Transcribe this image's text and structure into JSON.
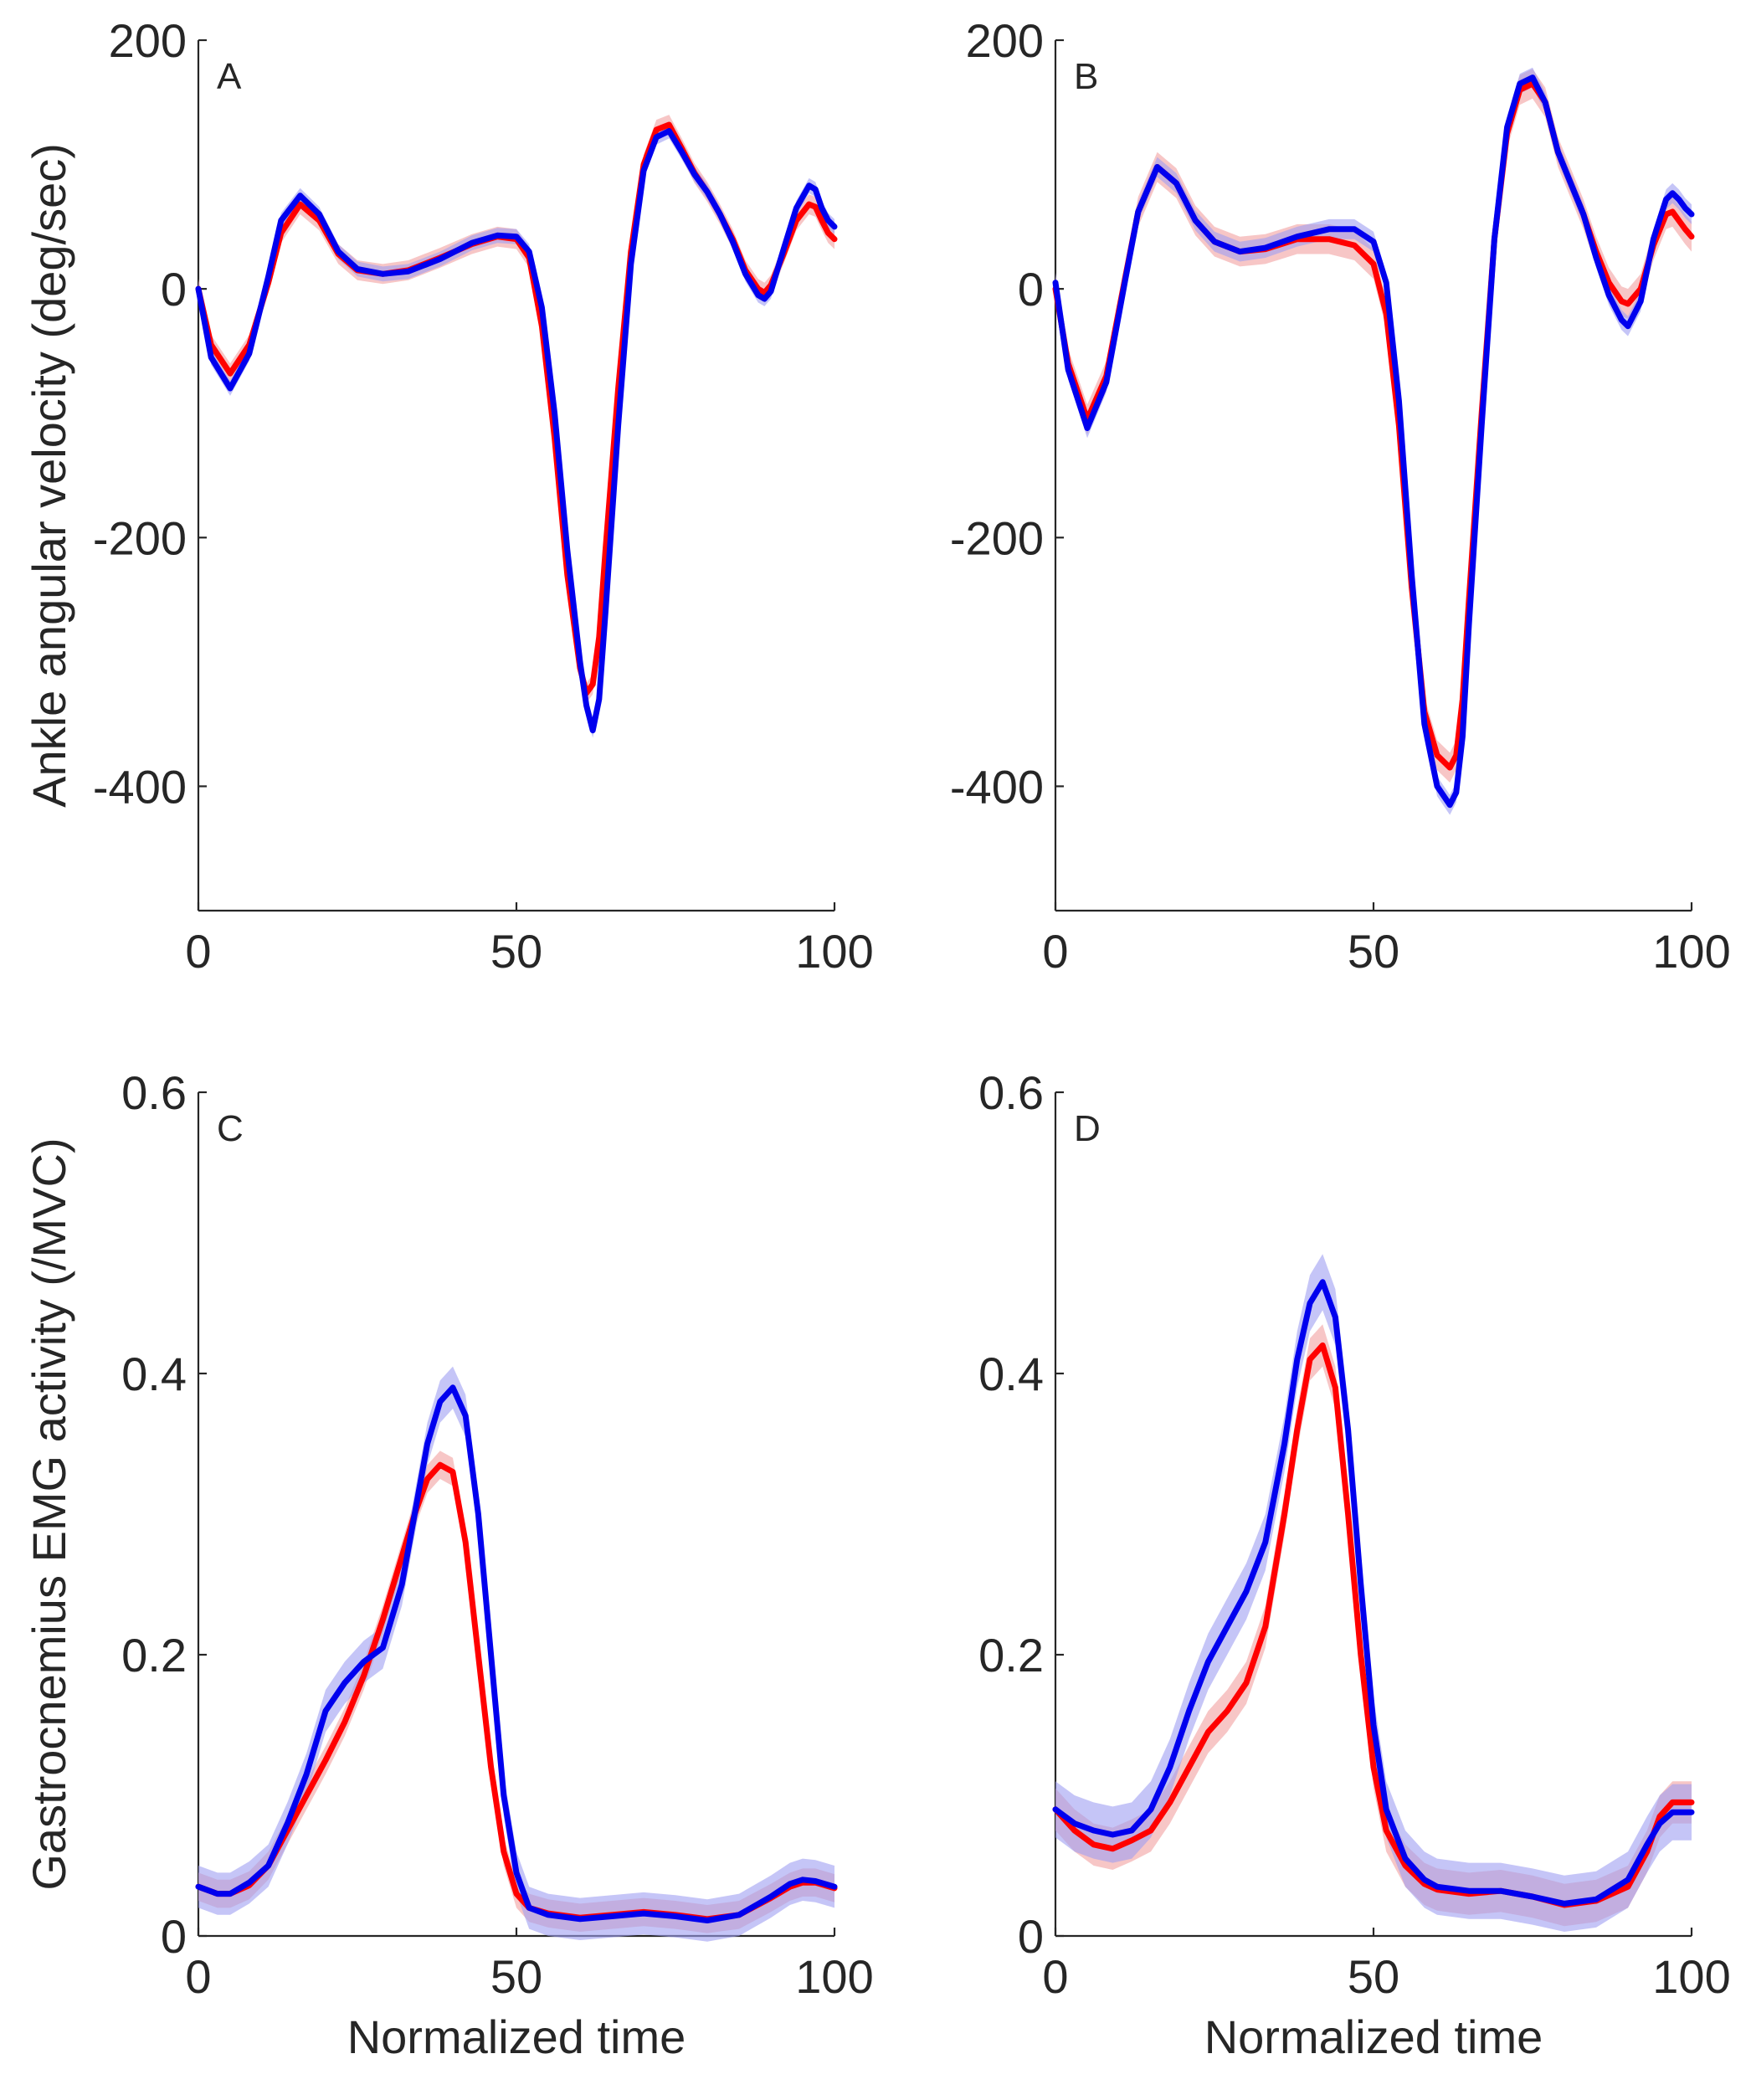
{
  "colors": {
    "red": "#ff0000",
    "blue": "#0000ee",
    "red_band": "#f2a0a0",
    "blue_band": "#9e9ef2",
    "axis": "#262626"
  },
  "chart_data": [
    {
      "type": "line",
      "panel": "A",
      "xlabel": "",
      "ylabel": "Ankle angular velocity (deg/sec)",
      "xlim": [
        0,
        100
      ],
      "ylim": [
        -500,
        200
      ],
      "xticks": [
        0,
        50,
        100
      ],
      "yticks": [
        -400,
        -200,
        0,
        200
      ],
      "x": [
        0,
        2,
        5,
        8,
        11,
        13,
        16,
        19,
        22,
        25,
        29,
        33,
        38,
        43,
        47,
        50,
        52,
        54,
        56,
        58,
        60,
        61,
        62,
        63,
        64,
        66,
        68,
        70,
        72,
        74,
        76,
        78,
        80,
        82,
        84,
        86,
        88,
        89,
        90,
        92,
        94,
        96,
        97,
        98,
        99,
        100
      ],
      "series": [
        {
          "name": "red",
          "color": "#ff0000",
          "band": 8,
          "values": [
            0,
            -45,
            -68,
            -45,
            5,
            45,
            68,
            55,
            28,
            15,
            12,
            15,
            25,
            36,
            42,
            40,
            25,
            -30,
            -120,
            -230,
            -305,
            -325,
            -318,
            -280,
            -210,
            -80,
            30,
            100,
            128,
            132,
            113,
            93,
            78,
            60,
            40,
            15,
            0,
            -3,
            3,
            28,
            55,
            68,
            66,
            55,
            45,
            40
          ]
        },
        {
          "name": "blue",
          "color": "#0000ee",
          "band": 6,
          "values": [
            0,
            -55,
            -80,
            -52,
            10,
            55,
            75,
            60,
            30,
            16,
            12,
            14,
            24,
            37,
            43,
            42,
            30,
            -15,
            -100,
            -210,
            -300,
            -335,
            -355,
            -330,
            -260,
            -110,
            20,
            95,
            122,
            127,
            110,
            92,
            78,
            60,
            38,
            12,
            -5,
            -8,
            -2,
            32,
            65,
            83,
            80,
            65,
            55,
            50
          ]
        }
      ]
    },
    {
      "type": "line",
      "panel": "B",
      "xlabel": "",
      "ylabel": "",
      "xlim": [
        0,
        100
      ],
      "ylim": [
        -500,
        200
      ],
      "xticks": [
        0,
        50,
        100
      ],
      "yticks": [
        -400,
        -200,
        0,
        200
      ],
      "x": [
        0,
        2,
        5,
        8,
        11,
        13,
        16,
        19,
        22,
        25,
        29,
        33,
        38,
        43,
        47,
        50,
        52,
        54,
        56,
        58,
        60,
        62,
        63,
        64,
        65,
        67,
        69,
        71,
        73,
        75,
        77,
        79,
        81,
        83,
        85,
        87,
        89,
        90,
        92,
        94,
        96,
        97,
        98,
        99,
        100
      ],
      "series": [
        {
          "name": "red",
          "color": "#ff0000",
          "band": 12,
          "values": [
            0,
            -60,
            -105,
            -70,
            10,
            62,
            98,
            85,
            55,
            38,
            30,
            32,
            40,
            40,
            35,
            20,
            -20,
            -110,
            -240,
            -340,
            -375,
            -385,
            -375,
            -330,
            -250,
            -100,
            40,
            125,
            160,
            165,
            150,
            110,
            85,
            60,
            30,
            5,
            -10,
            -12,
            0,
            35,
            60,
            62,
            55,
            48,
            42
          ]
        },
        {
          "name": "blue",
          "color": "#0000ee",
          "band": 8,
          "values": [
            5,
            -65,
            -112,
            -75,
            8,
            62,
            98,
            85,
            55,
            38,
            30,
            33,
            42,
            48,
            48,
            38,
            5,
            -90,
            -230,
            -350,
            -400,
            -415,
            -405,
            -360,
            -270,
            -110,
            40,
            130,
            165,
            170,
            150,
            110,
            85,
            60,
            25,
            -5,
            -25,
            -30,
            -10,
            40,
            72,
            77,
            72,
            65,
            60
          ]
        }
      ]
    },
    {
      "type": "line",
      "panel": "C",
      "xlabel": "Normalized time",
      "ylabel": "Gastrocnemius EMG activity (/MVC)",
      "xlim": [
        0,
        100
      ],
      "ylim": [
        0,
        0.6
      ],
      "xticks": [
        0,
        50,
        100
      ],
      "yticks": [
        0,
        0.2,
        0.4,
        0.6
      ],
      "x": [
        0,
        3,
        5,
        8,
        11,
        14,
        17,
        20,
        23,
        26,
        29,
        32,
        34,
        36,
        38,
        40,
        42,
        44,
        46,
        48,
        50,
        52,
        55,
        60,
        65,
        70,
        75,
        80,
        85,
        90,
        93,
        95,
        97,
        100
      ],
      "series": [
        {
          "name": "red",
          "color": "#ff0000",
          "band": 0.01,
          "values": [
            0.035,
            0.03,
            0.03,
            0.036,
            0.05,
            0.075,
            0.1,
            0.125,
            0.152,
            0.185,
            0.225,
            0.27,
            0.3,
            0.325,
            0.335,
            0.33,
            0.28,
            0.2,
            0.12,
            0.06,
            0.03,
            0.02,
            0.016,
            0.013,
            0.015,
            0.017,
            0.015,
            0.012,
            0.015,
            0.027,
            0.035,
            0.038,
            0.038,
            0.034
          ]
        },
        {
          "name": "blue",
          "color": "#0000ee",
          "band": 0.015,
          "values": [
            0.035,
            0.03,
            0.03,
            0.038,
            0.05,
            0.08,
            0.115,
            0.16,
            0.18,
            0.195,
            0.205,
            0.25,
            0.3,
            0.35,
            0.38,
            0.39,
            0.37,
            0.3,
            0.2,
            0.1,
            0.045,
            0.02,
            0.015,
            0.012,
            0.014,
            0.016,
            0.014,
            0.011,
            0.015,
            0.028,
            0.037,
            0.04,
            0.039,
            0.035
          ]
        }
      ]
    },
    {
      "type": "line",
      "panel": "D",
      "xlabel": "Normalized time",
      "ylabel": "",
      "xlim": [
        0,
        100
      ],
      "ylim": [
        0,
        0.6
      ],
      "xticks": [
        0,
        50,
        100
      ],
      "yticks": [
        0,
        0.2,
        0.4,
        0.6
      ],
      "x": [
        0,
        3,
        6,
        9,
        12,
        15,
        18,
        21,
        24,
        27,
        30,
        33,
        36,
        38,
        40,
        42,
        44,
        46,
        48,
        50,
        52,
        55,
        58,
        60,
        65,
        70,
        75,
        80,
        85,
        90,
        93,
        95,
        97,
        100
      ],
      "series": [
        {
          "name": "red",
          "color": "#ff0000",
          "band": 0.015,
          "values": [
            0.09,
            0.075,
            0.065,
            0.062,
            0.068,
            0.075,
            0.095,
            0.12,
            0.145,
            0.16,
            0.18,
            0.22,
            0.3,
            0.36,
            0.41,
            0.42,
            0.39,
            0.3,
            0.2,
            0.12,
            0.075,
            0.05,
            0.037,
            0.033,
            0.03,
            0.032,
            0.028,
            0.022,
            0.025,
            0.035,
            0.06,
            0.085,
            0.095,
            0.095
          ]
        },
        {
          "name": "blue",
          "color": "#0000ee",
          "band": 0.02,
          "values": [
            0.09,
            0.08,
            0.075,
            0.072,
            0.075,
            0.09,
            0.12,
            0.16,
            0.195,
            0.22,
            0.245,
            0.28,
            0.35,
            0.41,
            0.45,
            0.465,
            0.44,
            0.36,
            0.25,
            0.15,
            0.09,
            0.055,
            0.04,
            0.035,
            0.032,
            0.032,
            0.028,
            0.023,
            0.026,
            0.04,
            0.065,
            0.08,
            0.088,
            0.088
          ]
        }
      ]
    }
  ]
}
